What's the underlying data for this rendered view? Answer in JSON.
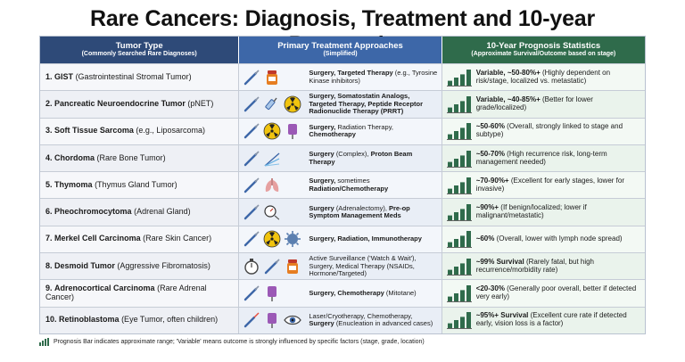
{
  "title": "Rare Cancers: Diagnosis, Treatment and 10-year Prognosis",
  "headers": {
    "col1": "Tumor Type",
    "col1_sub": "(Commonly Searched Rare Diagnoses)",
    "col2": "Primary Treatment Approaches",
    "col2_sub": "(Simplified)",
    "col3": "10-Year Prognosis Statistics",
    "col3_sub": "(Approximate Survival/Outcome based on stage)"
  },
  "colors": {
    "header1": "#2e4a78",
    "header2": "#3d67a8",
    "header3": "#2f6b4b"
  },
  "rows": [
    {
      "num": "1.",
      "name": "GIST",
      "detail": "(Gastrointestinal Stromal Tumor)",
      "icons": [
        "scalpel-icon",
        "pill-bottle-icon"
      ],
      "tx_bold": "Surgery, Targeted Therapy",
      "tx": "(e.g., Tyrosine Kinase inhibitors)",
      "bars": [
        0.3,
        0.5,
        0.7,
        1.0
      ],
      "pr_bold": "Variable, ~50-80%+",
      "pr": "(Highly dependent on risk/stage, localized vs. metastatic)"
    },
    {
      "num": "2.",
      "name": "Pancreatic Neuroendocrine Tumor",
      "detail": "(pNET)",
      "icons": [
        "scalpel-icon",
        "syringe-icon",
        "radiation-icon"
      ],
      "tx_bold": "Surgery, Somatostatin Analogs, Targeted Therapy, Peptide Receptor Radionuclide Therapy (PRRT)",
      "tx": "",
      "bars": [
        0.3,
        0.5,
        0.7,
        1.0
      ],
      "pr_bold": "Variable, ~40-85%+",
      "pr": "(Better for lower grade/localized)"
    },
    {
      "num": "3.",
      "name": "Soft Tissue Sarcoma",
      "detail": "(e.g., Liposarcoma)",
      "icons": [
        "scalpel-icon",
        "radiation-icon",
        "iv-bag-icon"
      ],
      "tx_bold": "Surgery,",
      "tx": "Radiation Therapy,",
      "tx_bold2": "Chemotherapy",
      "bars": [
        0.3,
        0.5,
        0.7,
        1.0
      ],
      "pr_bold": "~50-60%",
      "pr": "(Overall, strongly linked to stage and subtype)"
    },
    {
      "num": "4.",
      "name": "Chordoma",
      "detail": "(Rare Bone Tumor)",
      "icons": [
        "scalpel-icon",
        "proton-beam-icon"
      ],
      "tx_bold": "Surgery",
      "tx": "(Complex),",
      "tx_bold2": "Proton Beam Therapy",
      "bars": [
        0.3,
        0.5,
        0.7,
        1.0
      ],
      "pr_bold": "~50-70%",
      "pr": "(High recurrence risk, long-term management needed)"
    },
    {
      "num": "5.",
      "name": "Thymoma",
      "detail": "(Thymus Gland Tumor)",
      "icons": [
        "scalpel-icon",
        "lungs-icon"
      ],
      "tx_bold": "Surgery,",
      "tx": "sometimes",
      "tx_bold2": "Radiation/Chemotherapy",
      "bars": [
        0.3,
        0.5,
        0.7,
        1.0
      ],
      "pr_bold": "~70-90%+",
      "pr": "(Excellent for early stages, lower for invasive)"
    },
    {
      "num": "6.",
      "name": "Pheochromocytoma",
      "detail": "(Adrenal Gland)",
      "icons": [
        "scalpel-icon",
        "blood-pressure-icon"
      ],
      "tx_bold": "Surgery",
      "tx": "(Adrenalectomy),",
      "tx_bold2": "Pre-op Symptom Management Meds",
      "bars": [
        0.3,
        0.5,
        0.7,
        1.0
      ],
      "pr_bold": "~90%+",
      "pr": "(If benign/localized; lower if malignant/metastatic)"
    },
    {
      "num": "7.",
      "name": "Merkel Cell Carcinoma",
      "detail": "(Rare Skin Cancer)",
      "icons": [
        "scalpel-icon",
        "radiation-icon",
        "immune-cell-icon"
      ],
      "tx_bold": "Surgery, Radiation, Immunotherapy",
      "tx": "",
      "bars": [
        0.3,
        0.5,
        0.7,
        1.0
      ],
      "pr_bold": "~60%",
      "pr": "(Overall, lower with lymph node spread)"
    },
    {
      "num": "8.",
      "name": "Desmoid Tumor",
      "detail": "(Aggressive Fibromatosis)",
      "icons": [
        "stopwatch-icon",
        "scalpel-icon",
        "pill-bottle-icon"
      ],
      "tx_plain": "Active Surveillance ('Watch & Wait'), Surgery, Medical Therapy (NSAIDs, Hormone/Targeted)",
      "bars": [
        0.3,
        0.5,
        0.7,
        1.0
      ],
      "pr_bold": "~99% Survival",
      "pr": "(Rarely fatal, but high recurrence/morbidity rate)"
    },
    {
      "num": "9.",
      "name": "Adrenocortical Carcinoma",
      "detail": "(Rare Adrenal Cancer)",
      "icons": [
        "scalpel-icon",
        "iv-bag-icon"
      ],
      "tx_bold": "Surgery, Chemotherapy",
      "tx": "(Mitotane)",
      "bars": [
        0.3,
        0.5,
        0.7,
        1.0
      ],
      "pr_bold": "<20-30%",
      "pr": "(Generally poor overall, better if detected very early)"
    },
    {
      "num": "10.",
      "name": "Retinoblastoma",
      "detail": "(Eye Tumor, often children)",
      "icons": [
        "laser-icon",
        "iv-bag-icon",
        "eye-icon"
      ],
      "tx_plain": "Laser/Cryotherapy, Chemotherapy,",
      "tx_bold": "Surgery",
      "tx": "(Enucleation in advanced cases)",
      "bars": [
        0.3,
        0.5,
        0.7,
        1.0
      ],
      "pr_bold": "~95%+ Survival",
      "pr": "(Excellent cure rate if detected early, vision loss is a factor)"
    }
  ],
  "footnote": "Prognosis Bar indicates approximate range; 'Variable' means outcome is strongly influenced by specific factors (stage, grade, location)"
}
